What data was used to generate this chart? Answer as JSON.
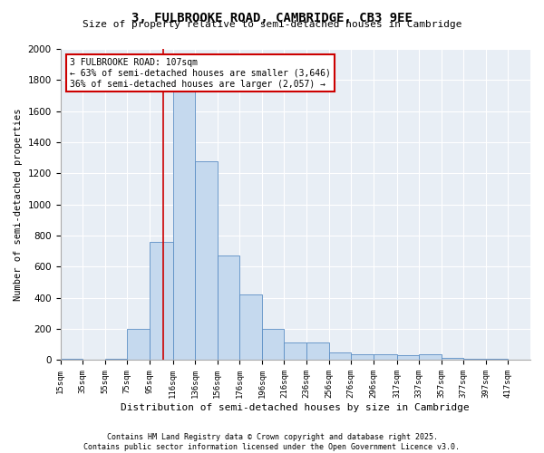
{
  "title": "3, FULBROOKE ROAD, CAMBRIDGE, CB3 9EE",
  "subtitle": "Size of property relative to semi-detached houses in Cambridge",
  "xlabel": "Distribution of semi-detached houses by size in Cambridge",
  "ylabel": "Number of semi-detached properties",
  "bar_color": "#c5d9ee",
  "bar_edge_color": "#5b8ec4",
  "background_color": "#e8eef5",
  "grid_color": "#ffffff",
  "annotation_box_color": "#cc0000",
  "property_line_color": "#cc0000",
  "property_size": 107,
  "annotation_text_line1": "3 FULBROOKE ROAD: 107sqm",
  "annotation_text_line2": "← 63% of semi-detached houses are smaller (3,646)",
  "annotation_text_line3": "36% of semi-detached houses are larger (2,057) →",
  "footer_line1": "Contains HM Land Registry data © Crown copyright and database right 2025.",
  "footer_line2": "Contains public sector information licensed under the Open Government Licence v3.0.",
  "bins": [
    15,
    35,
    55,
    75,
    95,
    116,
    136,
    156,
    176,
    196,
    216,
    236,
    256,
    276,
    296,
    317,
    337,
    357,
    377,
    397,
    417
  ],
  "counts": [
    10,
    5,
    10,
    200,
    760,
    1900,
    1280,
    670,
    420,
    200,
    115,
    115,
    50,
    35,
    40,
    30,
    40,
    15,
    10,
    10,
    5
  ],
  "ylim": [
    0,
    2000
  ],
  "yticks": [
    0,
    200,
    400,
    600,
    800,
    1000,
    1200,
    1400,
    1600,
    1800,
    2000
  ]
}
